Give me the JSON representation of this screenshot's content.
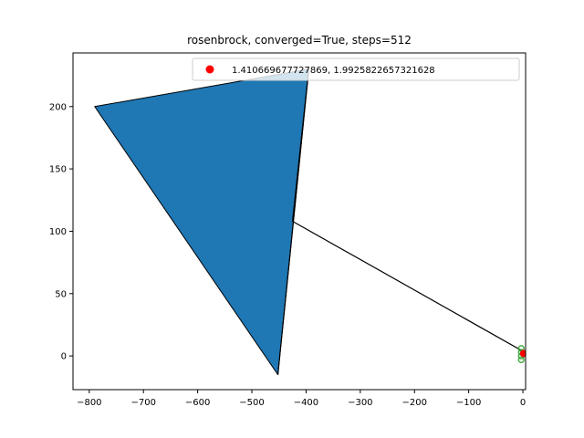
{
  "chart_data": {
    "type": "scatter",
    "title": "rosenbrock, converged=True, steps=512",
    "xlabel": "",
    "ylabel": "",
    "xlim": [
      -830,
      5
    ],
    "ylim": [
      -27,
      243
    ],
    "x_ticks": [
      -800,
      -700,
      -600,
      -500,
      -400,
      -300,
      -200,
      -100,
      0
    ],
    "y_ticks": [
      0,
      50,
      100,
      150,
      200
    ],
    "grid": false,
    "legend_position": "top-right",
    "polygon": {
      "vertices": [
        [
          -790,
          200
        ],
        [
          -395,
          230
        ],
        [
          -452,
          -15
        ]
      ],
      "fill": "#1f77b4",
      "edge": "#000000"
    },
    "path": {
      "points": [
        [
          -452,
          -15
        ],
        [
          -395,
          230
        ],
        [
          -425,
          108
        ],
        [
          -5,
          5
        ],
        [
          1.410669677727869,
          1.9925822657321628
        ]
      ],
      "color": "#000000"
    },
    "endpoint_markers": {
      "points": [
        [
          -3,
          6
        ],
        [
          -3,
          3
        ],
        [
          -3,
          0
        ],
        [
          -3,
          -3
        ]
      ],
      "color": "#2ca02c"
    },
    "series": [
      {
        "name": "1.410669677727869, 1.9925822657321628",
        "x": [
          1.410669677727869
        ],
        "y": [
          1.9925822657321628
        ],
        "color": "#ff0000",
        "marker": "o"
      }
    ]
  }
}
